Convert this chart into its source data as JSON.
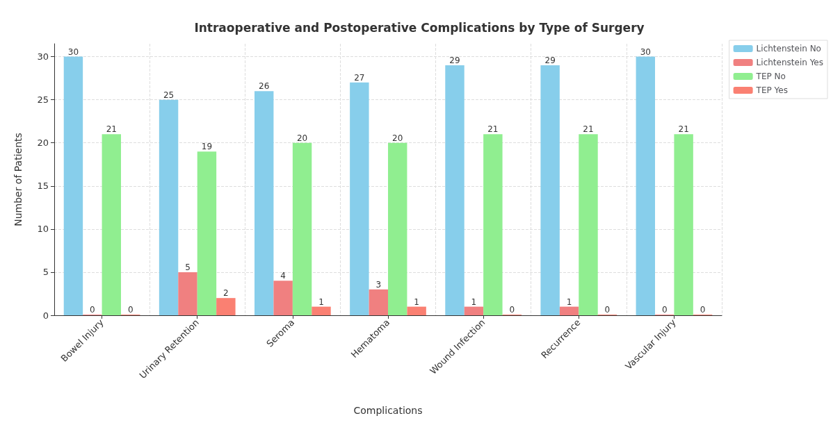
{
  "chart_data": {
    "type": "bar",
    "title": "Intraoperative and Postoperative Complications by Type of Surgery",
    "xlabel": "Complications",
    "ylabel": "Number of Patients",
    "categories": [
      "Bowel Injury",
      "Urinary Retention",
      "Seroma",
      "Hematoma",
      "Wound Infection",
      "Recurrence",
      "Vascular Injury"
    ],
    "series": [
      {
        "name": "Lichtenstein No",
        "color": "#87ceeb",
        "values": [
          30,
          25,
          26,
          27,
          29,
          29,
          30
        ]
      },
      {
        "name": "Lichtenstein Yes",
        "color": "#f08080",
        "values": [
          0,
          5,
          4,
          3,
          1,
          1,
          0
        ]
      },
      {
        "name": "TEP No",
        "color": "#90ee90",
        "values": [
          21,
          19,
          20,
          20,
          21,
          21,
          21
        ]
      },
      {
        "name": "TEP Yes",
        "color": "#fa8072",
        "values": [
          0,
          2,
          1,
          1,
          0,
          0,
          0
        ]
      }
    ],
    "ylim": [
      0,
      31.5
    ],
    "yticks": [
      0,
      5,
      10,
      15,
      20,
      25,
      30
    ],
    "grid": true,
    "legend": "top right",
    "data_labels": true
  }
}
